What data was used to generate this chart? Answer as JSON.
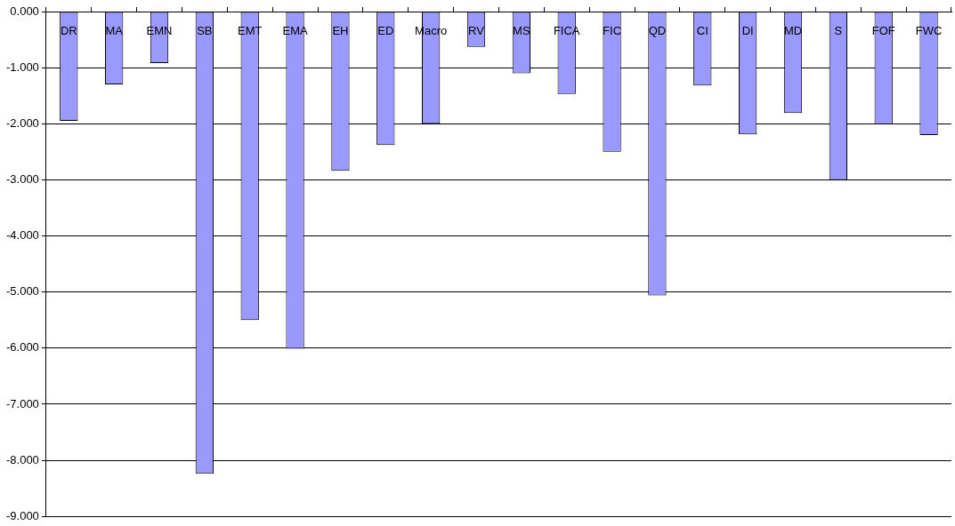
{
  "chart_data": {
    "type": "bar",
    "categories": [
      "DR",
      "MA",
      "EMN",
      "SB",
      "EMT",
      "EMA",
      "EH",
      "ED",
      "Macro",
      "RV",
      "MS",
      "FICA",
      "FIC",
      "QD",
      "CI",
      "DI",
      "MD",
      "S",
      "FOF",
      "FWC"
    ],
    "values": [
      -1.95,
      -1.3,
      -0.92,
      -8.24,
      -5.5,
      -6.01,
      -2.84,
      -2.38,
      -2.0,
      -0.63,
      -1.1,
      -1.47,
      -2.5,
      -5.06,
      -1.32,
      -2.19,
      -1.81,
      -3.0,
      -2.01,
      -2.2
    ],
    "color": "#9999ff",
    "ylim": [
      -9,
      0
    ],
    "yticks": [
      {
        "value": 0,
        "label": "0.000"
      },
      {
        "value": -1,
        "label": "-1.000"
      },
      {
        "value": -2,
        "label": "-2.000"
      },
      {
        "value": -3,
        "label": "-3.000"
      },
      {
        "value": -4,
        "label": "-4.000"
      },
      {
        "value": -5,
        "label": "-5.000"
      },
      {
        "value": -6,
        "label": "-6.000"
      },
      {
        "value": -7,
        "label": "-7.000"
      },
      {
        "value": -8,
        "label": "-8.000"
      },
      {
        "value": -9,
        "label": "-9.000"
      }
    ],
    "grid": "y",
    "legend": false
  }
}
